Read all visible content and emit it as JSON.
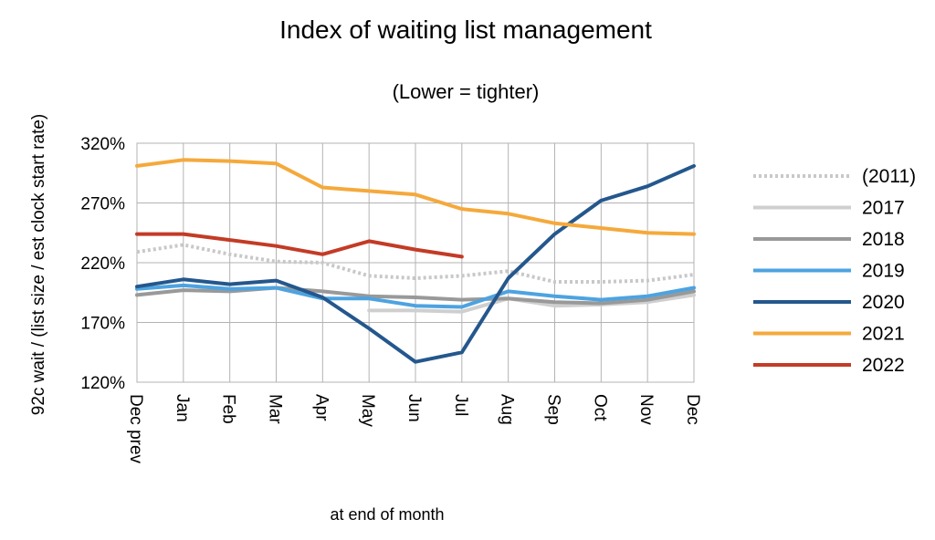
{
  "chart_data": {
    "type": "line",
    "title": "Index of waiting list management",
    "subtitle": "(Lower = tighter)",
    "xlabel": "at end of month",
    "ylabel": "92c wait / (list size / est clock start rate)",
    "categories": [
      "Dec prev",
      "Jan",
      "Feb",
      "Mar",
      "Apr",
      "May",
      "Jun",
      "Jul",
      "Aug",
      "Sep",
      "Oct",
      "Nov",
      "Dec"
    ],
    "y_ticks": [
      "120%",
      "170%",
      "220%",
      "270%",
      "320%"
    ],
    "y_tick_values": [
      120,
      170,
      220,
      270,
      320
    ],
    "ylim": [
      120,
      320
    ],
    "grid": true,
    "legend_position": "right",
    "series": [
      {
        "name": "(2011)",
        "color": "#c8c8c8",
        "dashed": true,
        "values": [
          229,
          235,
          227,
          221,
          220,
          209,
          207,
          209,
          213,
          204,
          204,
          205,
          210
        ]
      },
      {
        "name": "2017",
        "color": "#cfcfcf",
        "dashed": false,
        "values": [
          null,
          null,
          null,
          null,
          null,
          180,
          180,
          179,
          190,
          184,
          185,
          187,
          193
        ]
      },
      {
        "name": "2018",
        "color": "#999999",
        "dashed": false,
        "values": [
          193,
          197,
          196,
          199,
          196,
          192,
          191,
          189,
          190,
          187,
          186,
          189,
          196
        ]
      },
      {
        "name": "2019",
        "color": "#4da3e0",
        "dashed": false,
        "values": [
          198,
          201,
          198,
          199,
          190,
          190,
          184,
          183,
          196,
          192,
          189,
          192,
          199
        ]
      },
      {
        "name": "2020",
        "color": "#24578d",
        "dashed": false,
        "values": [
          200,
          206,
          202,
          205,
          191,
          165,
          137,
          145,
          207,
          244,
          272,
          284,
          301
        ]
      },
      {
        "name": "2021",
        "color": "#f5a93b",
        "dashed": false,
        "values": [
          301,
          306,
          305,
          303,
          283,
          280,
          277,
          265,
          261,
          253,
          249,
          245,
          244
        ]
      },
      {
        "name": "2022",
        "color": "#c33b26",
        "dashed": false,
        "values": [
          244,
          244,
          239,
          234,
          227,
          238,
          231,
          225,
          null,
          null,
          null,
          null,
          null
        ]
      }
    ]
  }
}
